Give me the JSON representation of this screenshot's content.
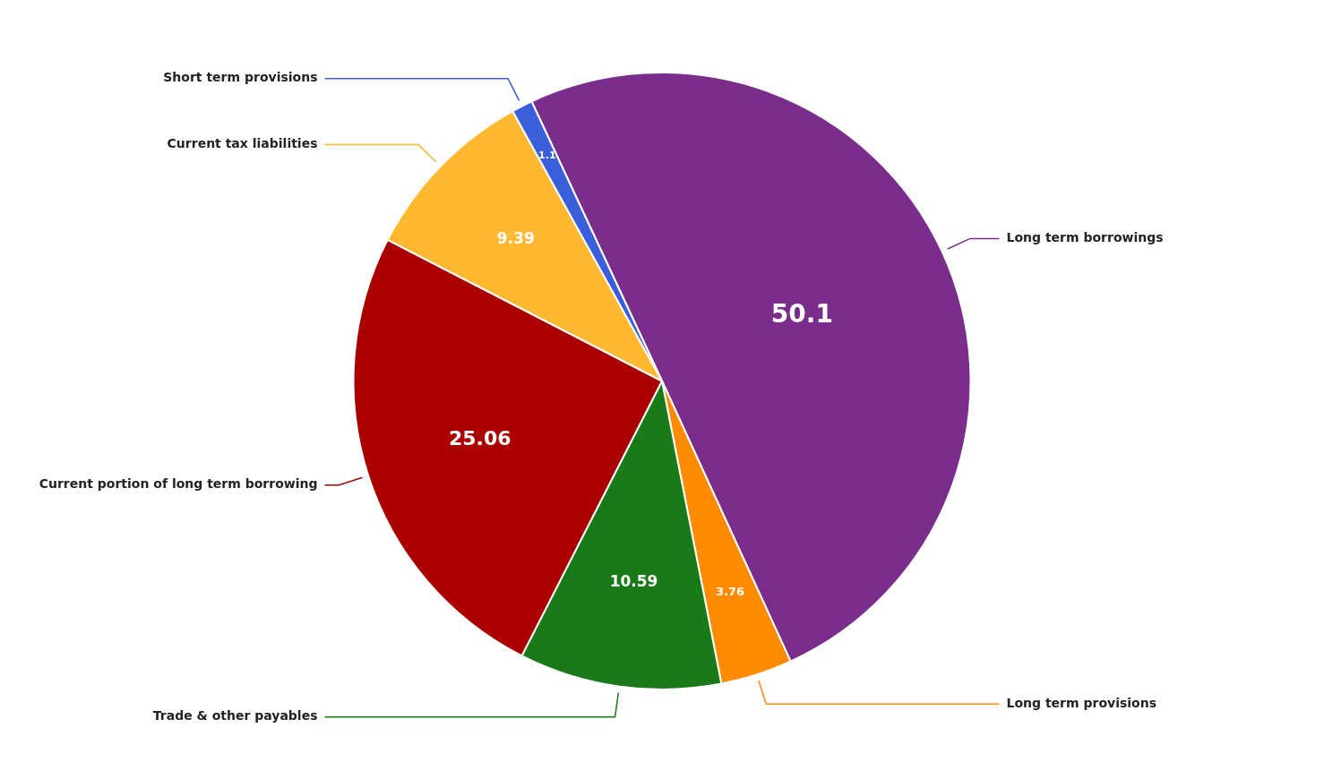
{
  "chart_data": {
    "type": "pie",
    "categories": [
      "Long term borrowings",
      "Long term provisions",
      "Trade & other payables",
      "Current portion of long term borrowing",
      "Current tax liabilities",
      "Short term provisions"
    ],
    "values": [
      50.1,
      3.76,
      10.59,
      25.06,
      9.39,
      1.1
    ],
    "colors": [
      "#7B2D8B",
      "#FF8C00",
      "#1A7A1A",
      "#AA0000",
      "#FFB830",
      "#3B5FDB"
    ],
    "data_labels": true
  }
}
